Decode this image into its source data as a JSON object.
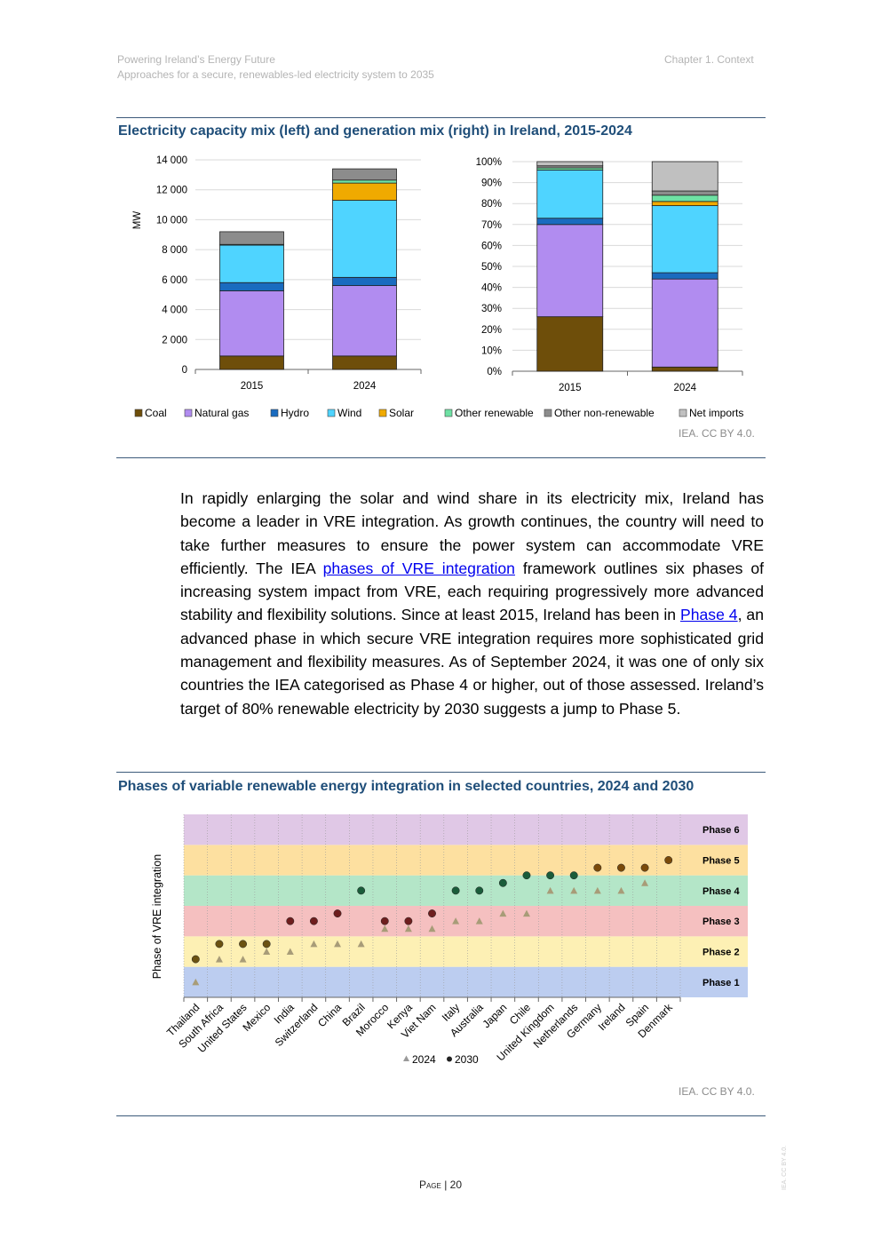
{
  "header": {
    "doc_title": "Powering Ireland’s Energy Future",
    "doc_subtitle": "Approaches for a secure, renewables-led electricity system to 2035",
    "chapter": "Chapter 1. Context"
  },
  "figure1": {
    "title": "Electricity capacity mix (left) and generation mix (right) in Ireland, 2015-2024",
    "credit": "IEA. CC BY 4.0.",
    "legend": [
      {
        "name": "Coal",
        "color": "#6e4e0a"
      },
      {
        "name": "Natural gas",
        "color": "#b18cf0"
      },
      {
        "name": "Hydro",
        "color": "#1a6bbf"
      },
      {
        "name": "Wind",
        "color": "#4fd4ff"
      },
      {
        "name": "Solar",
        "color": "#f0aa00"
      },
      {
        "name": "Other renewable",
        "color": "#6ee1a4"
      },
      {
        "name": "Other non-renewable",
        "color": "#8c8c8c"
      },
      {
        "name": "Net imports",
        "color": "#c0c0c0"
      }
    ]
  },
  "figure2": {
    "title": "Phases of variable renewable energy integration in selected countries, 2024 and 2030",
    "credit": "IEA. CC BY 4.0.",
    "ylabel": "Phase of VRE integration"
  },
  "body_text": {
    "p1": "In rapidly enlarging the solar and wind share in its electricity mix, Ireland has become a leader in VRE integration. As growth continues, the country will need to take further measures to ensure the power system can accommodate VRE efficiently. The IEA ",
    "link1": "phases of VRE integration",
    "p2": " framework outlines six phases of increasing system impact from VRE, each requiring progressively more advanced stability and flexibility solutions. Since at least 2015, Ireland has been in ",
    "link2": "Phase 4",
    "p3": ", an advanced phase in which secure VRE integration requires more sophisticated grid management and flexibility measures. As of September 2024, it was one of only six countries the IEA categorised as Phase 4 or higher, out of those assessed. Ireland’s target of 80% renewable electricity by 2030 suggests a jump to Phase 5."
  },
  "footer": {
    "page_label": "Page",
    "page_number": "20",
    "side_text": "IEA. CC BY 4.0."
  },
  "chart_data": [
    {
      "id": "capacity",
      "type": "bar",
      "stacked": true,
      "title": "Electricity capacity mix (Ireland)",
      "ylabel": "MW",
      "categories": [
        "2015",
        "2024"
      ],
      "ylim": [
        0,
        14000
      ],
      "yticks": [
        "0",
        "2 000",
        "4 000",
        "6 000",
        "8 000",
        "10 000",
        "12 000",
        "14 000"
      ],
      "series": [
        {
          "name": "Coal",
          "values": [
            900,
            900
          ]
        },
        {
          "name": "Natural gas",
          "values": [
            4350,
            4700
          ]
        },
        {
          "name": "Hydro",
          "values": [
            550,
            550
          ]
        },
        {
          "name": "Wind",
          "values": [
            2500,
            5150
          ]
        },
        {
          "name": "Solar",
          "values": [
            0,
            1150
          ]
        },
        {
          "name": "Other renewable",
          "values": [
            50,
            200
          ]
        },
        {
          "name": "Other non-renewable",
          "values": [
            850,
            750
          ]
        },
        {
          "name": "Net imports",
          "values": [
            0,
            0
          ]
        }
      ]
    },
    {
      "id": "generation",
      "type": "bar",
      "stacked": true,
      "title": "Electricity generation mix (Ireland)",
      "ylabel": "",
      "categories": [
        "2015",
        "2024"
      ],
      "ylim": [
        0,
        100
      ],
      "yticks": [
        "0%",
        "10%",
        "20%",
        "30%",
        "40%",
        "50%",
        "60%",
        "70%",
        "80%",
        "90%",
        "100%"
      ],
      "series": [
        {
          "name": "Coal",
          "values": [
            26,
            2
          ]
        },
        {
          "name": "Natural gas",
          "values": [
            44,
            42
          ]
        },
        {
          "name": "Hydro",
          "values": [
            3,
            3
          ]
        },
        {
          "name": "Wind",
          "values": [
            23,
            32
          ]
        },
        {
          "name": "Solar",
          "values": [
            0,
            2
          ]
        },
        {
          "name": "Other renewable",
          "values": [
            1,
            3
          ]
        },
        {
          "name": "Other non-renewable",
          "values": [
            1,
            2
          ]
        },
        {
          "name": "Net imports",
          "values": [
            2,
            14
          ]
        }
      ]
    },
    {
      "id": "vre_phases",
      "type": "scatter",
      "title": "Phases of variable renewable energy integration in selected countries, 2024 and 2030",
      "ylabel": "Phase of VRE integration",
      "ylim": [
        1,
        6
      ],
      "phases": [
        "Phase 1",
        "Phase 2",
        "Phase 3",
        "Phase 4",
        "Phase 5",
        "Phase 6"
      ],
      "phase_colors": [
        "#bccdf0",
        "#fdf0b4",
        "#f5c0c0",
        "#b4e6c8",
        "#fde0a0",
        "#e0c8e6"
      ],
      "countries": [
        "Thailand",
        "South Africa",
        "United States",
        "Mexico",
        "India",
        "Switzerland",
        "China",
        "Brazil",
        "Morocco",
        "Kenya",
        "Viet Nam",
        "Italy",
        "Australia",
        "Japan",
        "Chile",
        "United Kingdom",
        "Netherlands",
        "Germany",
        "Ireland",
        "Spain",
        "Denmark"
      ],
      "series": [
        {
          "name": "2024",
          "marker": "triangle",
          "values": [
            1.0,
            1.75,
            1.75,
            2.0,
            2.0,
            2.25,
            2.25,
            2.25,
            2.75,
            2.75,
            2.75,
            3.0,
            3.0,
            3.25,
            3.25,
            4.0,
            4.0,
            4.0,
            4.0,
            4.25,
            5.0
          ]
        },
        {
          "name": "2030",
          "marker": "circle",
          "values": [
            1.75,
            2.25,
            2.25,
            2.25,
            3.0,
            3.0,
            3.25,
            4.0,
            3.0,
            3.0,
            3.25,
            4.0,
            4.0,
            4.25,
            4.5,
            4.5,
            4.5,
            4.75,
            4.75,
            4.75,
            5.0
          ]
        }
      ],
      "legend": [
        "2024",
        "2030"
      ]
    }
  ]
}
